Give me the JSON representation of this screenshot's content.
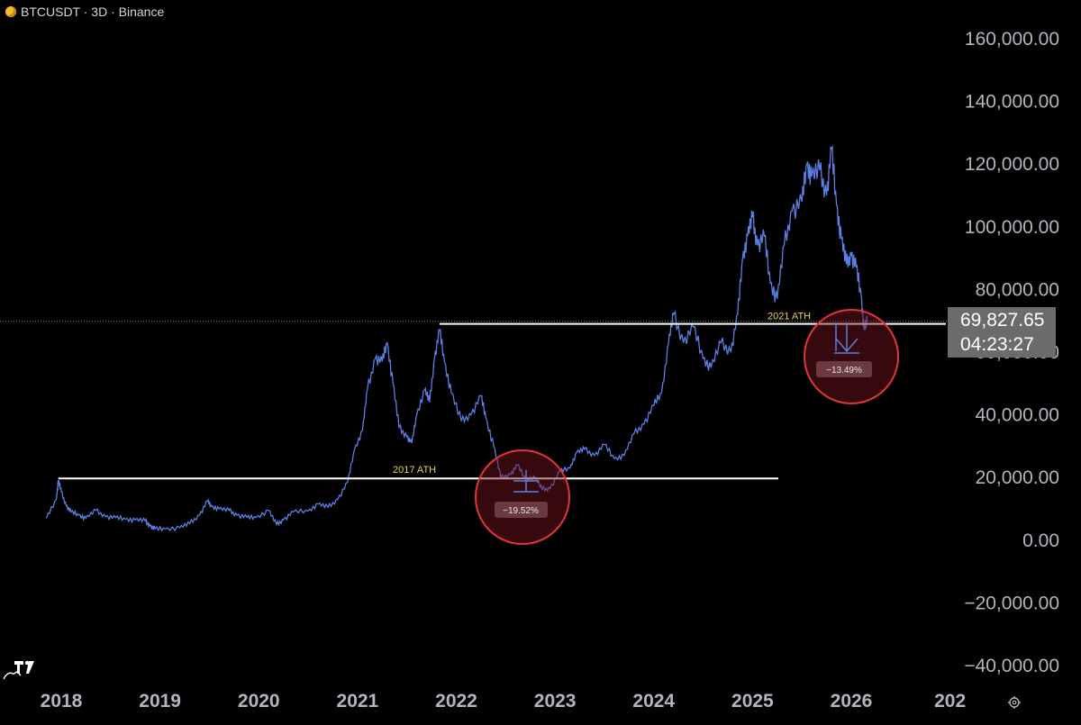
{
  "header": {
    "symbol": "BTCUSDT · 3D · Binance"
  },
  "price_tag": {
    "price": "69,827.65",
    "countdown": "04:23:27"
  },
  "y_axis": {
    "ticks": [
      "160,000.00",
      "140,000.00",
      "120,000.00",
      "100,000.00",
      "80,000.00",
      "60,000.00",
      "40,000.00",
      "20,000.00",
      "0.00",
      "−20,000.00",
      "−40,000.00"
    ]
  },
  "x_axis": {
    "ticks": [
      "2018",
      "2019",
      "2020",
      "2021",
      "2022",
      "2023",
      "2024",
      "2025",
      "2026",
      "202"
    ]
  },
  "annotations": {
    "ath_2017_label": "2017 ATH",
    "ath_2021_label": "2021 ATH",
    "drop_1": "−19.52%",
    "drop_2": "−13.49%"
  },
  "colors": {
    "line": "#5b7fe3",
    "accent_circle": "#e0353b",
    "ath_text": "#e8d44d",
    "level_line": "#ffffff"
  },
  "icons": {
    "logo": "tradingview-logo-icon",
    "settings": "gear-icon",
    "coin": "bitcoin-coin-icon"
  },
  "chart_data": {
    "type": "line",
    "title": "BTCUSDT · 3D · Binance",
    "xlabel": "",
    "ylabel": "",
    "ylim": [
      -40000,
      160000
    ],
    "xlim": [
      2017.8,
      2026.85
    ],
    "series": [
      {
        "values": [
          [
            2017.85,
            7000
          ],
          [
            2017.95,
            13000
          ],
          [
            2017.97,
            19000
          ],
          [
            2018.0,
            15500
          ],
          [
            2018.05,
            11000
          ],
          [
            2018.1,
            9000
          ],
          [
            2018.18,
            8000
          ],
          [
            2018.25,
            7000
          ],
          [
            2018.35,
            9500
          ],
          [
            2018.45,
            7500
          ],
          [
            2018.55,
            7200
          ],
          [
            2018.65,
            6700
          ],
          [
            2018.75,
            6500
          ],
          [
            2018.85,
            6200
          ],
          [
            2018.9,
            4500
          ],
          [
            2018.95,
            3600
          ],
          [
            2019.05,
            3600
          ],
          [
            2019.2,
            4000
          ],
          [
            2019.3,
            5300
          ],
          [
            2019.4,
            8000
          ],
          [
            2019.48,
            12500
          ],
          [
            2019.52,
            10800
          ],
          [
            2019.6,
            10000
          ],
          [
            2019.7,
            9500
          ],
          [
            2019.78,
            8000
          ],
          [
            2019.88,
            7300
          ],
          [
            2019.97,
            7200
          ],
          [
            2020.1,
            9500
          ],
          [
            2020.18,
            5000
          ],
          [
            2020.25,
            6500
          ],
          [
            2020.35,
            9000
          ],
          [
            2020.5,
            9300
          ],
          [
            2020.6,
            11500
          ],
          [
            2020.7,
            10500
          ],
          [
            2020.8,
            13000
          ],
          [
            2020.9,
            18500
          ],
          [
            2020.97,
            29000
          ],
          [
            2021.05,
            35000
          ],
          [
            2021.1,
            48000
          ],
          [
            2021.18,
            58000
          ],
          [
            2021.25,
            57000
          ],
          [
            2021.3,
            63000
          ],
          [
            2021.36,
            50000
          ],
          [
            2021.42,
            36000
          ],
          [
            2021.5,
            33000
          ],
          [
            2021.55,
            31000
          ],
          [
            2021.6,
            40000
          ],
          [
            2021.68,
            48000
          ],
          [
            2021.73,
            44000
          ],
          [
            2021.78,
            58000
          ],
          [
            2021.83,
            67000
          ],
          [
            2021.88,
            57000
          ],
          [
            2021.95,
            47000
          ],
          [
            2022.05,
            38000
          ],
          [
            2022.15,
            40000
          ],
          [
            2022.25,
            46000
          ],
          [
            2022.3,
            39000
          ],
          [
            2022.38,
            30000
          ],
          [
            2022.45,
            20000
          ],
          [
            2022.55,
            21000
          ],
          [
            2022.62,
            24000
          ],
          [
            2022.7,
            19500
          ],
          [
            2022.8,
            20000
          ],
          [
            2022.87,
            16200
          ],
          [
            2022.95,
            16500
          ],
          [
            2023.05,
            22000
          ],
          [
            2023.15,
            23000
          ],
          [
            2023.22,
            28000
          ],
          [
            2023.3,
            29000
          ],
          [
            2023.4,
            27000
          ],
          [
            2023.5,
            30500
          ],
          [
            2023.6,
            26000
          ],
          [
            2023.7,
            27000
          ],
          [
            2023.8,
            34000
          ],
          [
            2023.9,
            37000
          ],
          [
            2024.0,
            43000
          ],
          [
            2024.08,
            47000
          ],
          [
            2024.15,
            63000
          ],
          [
            2024.2,
            72000
          ],
          [
            2024.3,
            63000
          ],
          [
            2024.4,
            68000
          ],
          [
            2024.5,
            58000
          ],
          [
            2024.58,
            55000
          ],
          [
            2024.68,
            63000
          ],
          [
            2024.78,
            60000
          ],
          [
            2024.85,
            72000
          ],
          [
            2024.9,
            90000
          ],
          [
            2024.95,
            97000
          ],
          [
            2025.0,
            103000
          ],
          [
            2025.05,
            94000
          ],
          [
            2025.12,
            97000
          ],
          [
            2025.18,
            82000
          ],
          [
            2025.25,
            77000
          ],
          [
            2025.32,
            94000
          ],
          [
            2025.4,
            105000
          ],
          [
            2025.5,
            108000
          ],
          [
            2025.55,
            120000
          ],
          [
            2025.6,
            116000
          ],
          [
            2025.68,
            118000
          ],
          [
            2025.75,
            110000
          ],
          [
            2025.8,
            125000
          ],
          [
            2025.85,
            107000
          ],
          [
            2025.9,
            96000
          ],
          [
            2025.95,
            88000
          ],
          [
            2026.0,
            91000
          ],
          [
            2026.05,
            87000
          ],
          [
            2026.1,
            78000
          ],
          [
            2026.13,
            67000
          ],
          [
            2026.16,
            69800
          ]
        ]
      }
    ]
  }
}
